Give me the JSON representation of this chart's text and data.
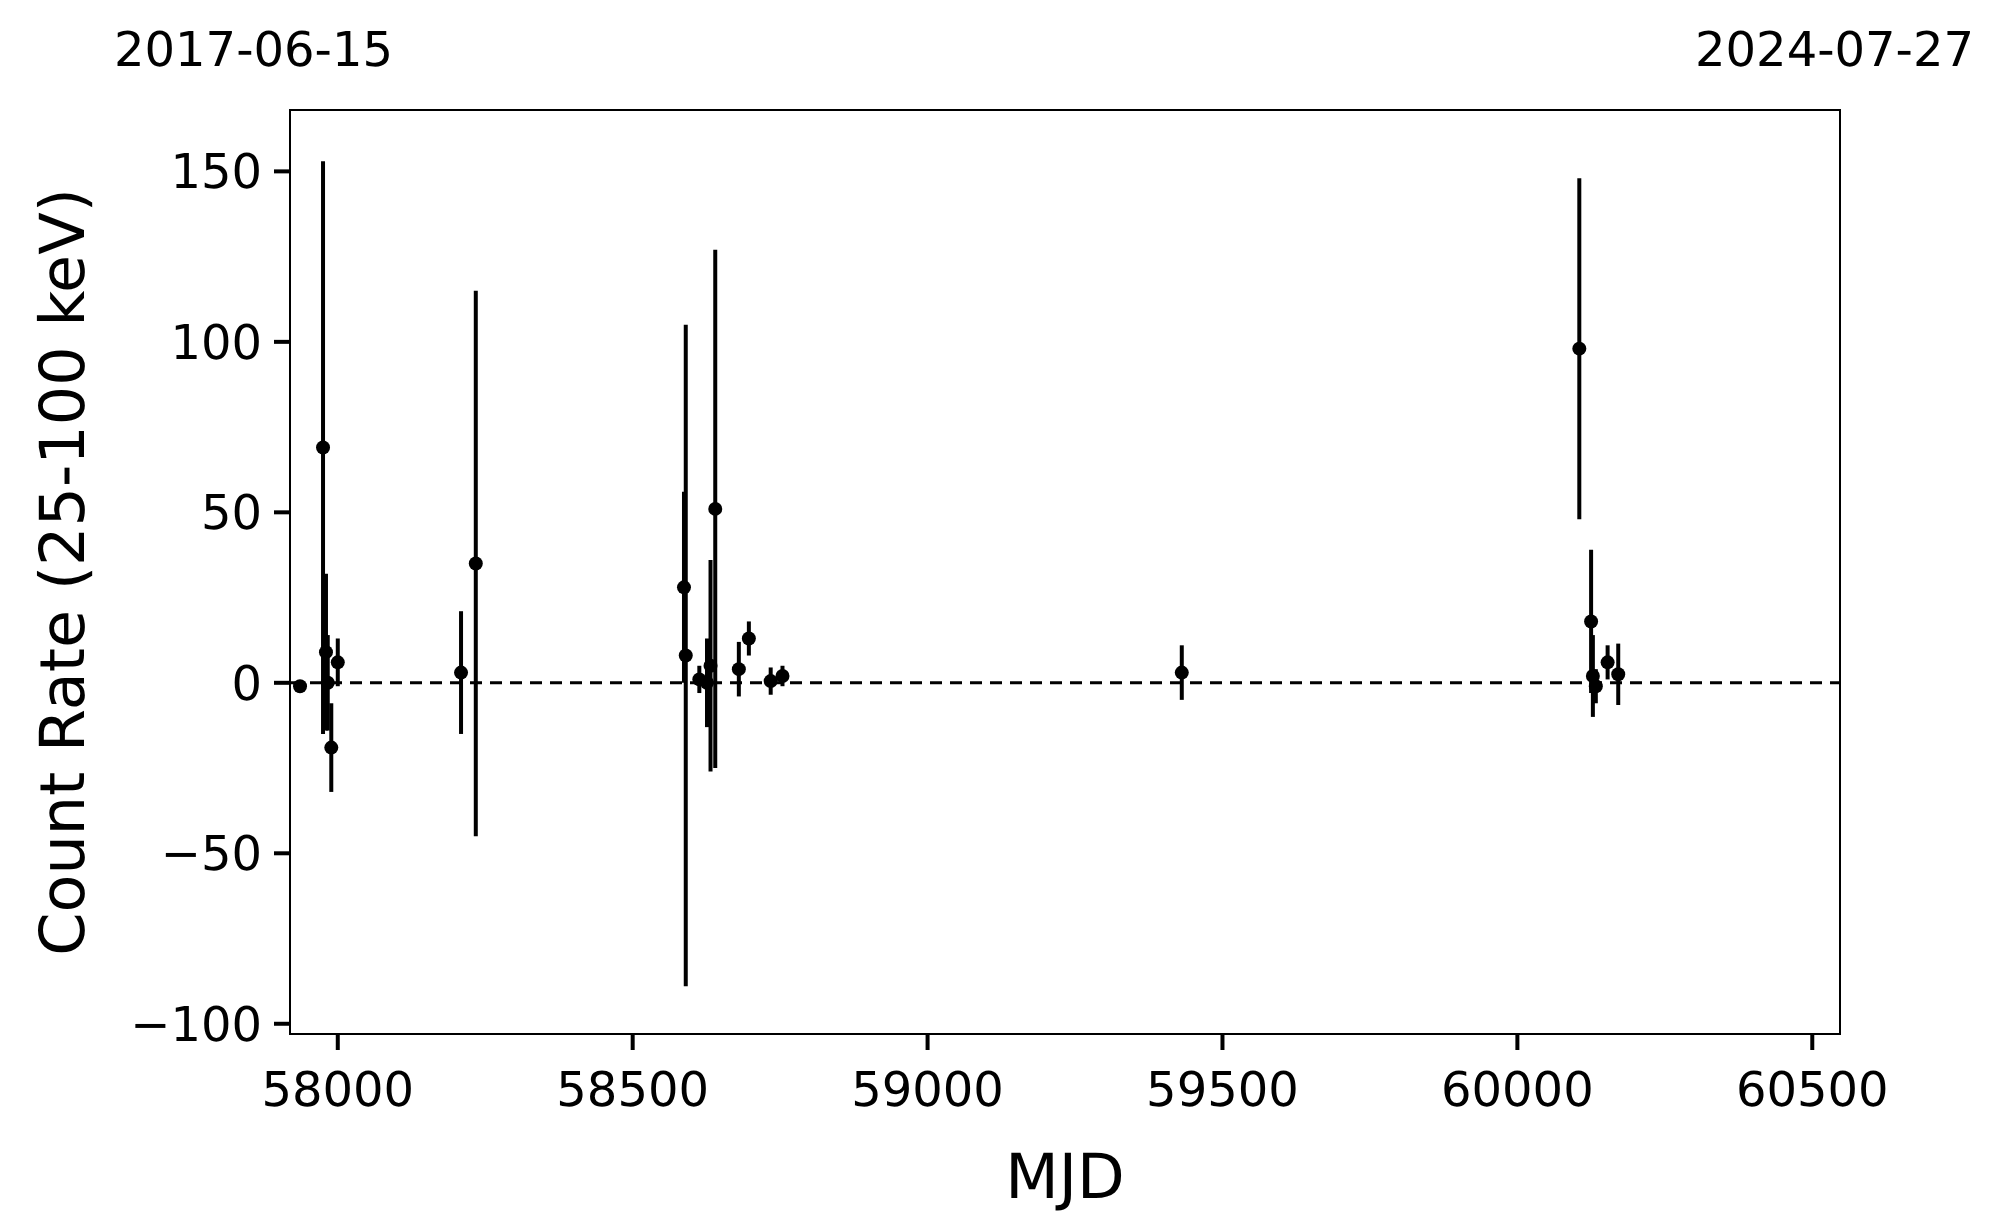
{
  "chart_data": {
    "type": "scatter",
    "xlabel": "MJD",
    "ylabel": "Count Rate (25-100 keV)",
    "x": [
      57936,
      57975,
      57980,
      57983,
      57989,
      58000,
      58209,
      58234,
      58587,
      58590,
      58613,
      58626,
      58632,
      58640,
      58680,
      58697,
      58734,
      58754,
      59431,
      60105,
      60125,
      60128,
      60133,
      60153,
      60171
    ],
    "series": [
      {
        "color": "#000000",
        "values": [
          -1,
          69,
          9,
          0,
          -19,
          6,
          3,
          35,
          28,
          8,
          1,
          0,
          5,
          51,
          4,
          13,
          0.5,
          2,
          3,
          98,
          18,
          2,
          -1,
          6,
          2.5
        ],
        "errors": [
          null,
          84,
          23,
          14,
          13,
          7,
          18,
          80,
          28,
          97,
          4,
          13,
          31,
          76,
          8,
          5,
          4,
          3,
          8,
          50,
          21,
          12,
          5,
          5,
          9
        ]
      }
    ],
    "xlim": [
      57919,
      60547
    ],
    "xticks": [
      58000,
      58500,
      59000,
      59500,
      60000,
      60500
    ],
    "ylim": [
      -103,
      168
    ],
    "yticks": [
      -100,
      -50,
      0,
      50,
      100,
      150
    ],
    "annotations": [
      "2017-06-15",
      "2024-07-27"
    ],
    "ref_lines": [
      {
        "axis": "y",
        "value": 0,
        "color": "#000000",
        "line_style": "dashed"
      }
    ],
    "marker": "circle",
    "grid": false
  }
}
